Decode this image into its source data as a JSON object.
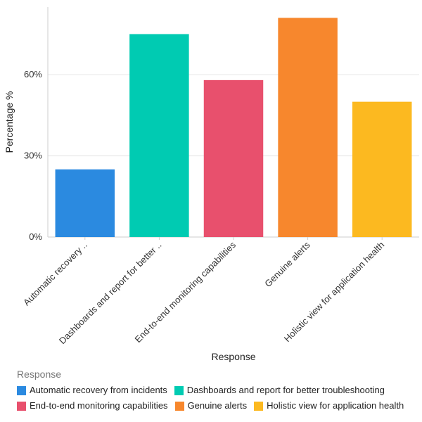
{
  "chart_data": {
    "type": "bar",
    "categories": [
      "Automatic recovery from incidents",
      "Dashboards and report for better troubleshooting",
      "End-to-end monitoring capabilities",
      "Genuine alerts",
      "Holistic view for application health"
    ],
    "category_tick_labels": [
      "Automatic recovery ..",
      "Dashboards and report for better ..",
      "End-to-end monitoring capabilities",
      "Genuine alerts",
      "Holistic view for application health"
    ],
    "values": [
      25,
      75,
      58,
      81,
      50
    ],
    "colors": [
      "#2b8ae0",
      "#00cbb2",
      "#e8506d",
      "#f7872d",
      "#fcb920"
    ],
    "ylim": [
      0,
      85
    ],
    "yticks": [
      0,
      30,
      60
    ],
    "ytick_labels": [
      "0%",
      "30%",
      "60%"
    ],
    "xlabel": "Response",
    "ylabel": "Percentage %",
    "grid": true,
    "legend_title": "Response",
    "legend_position": "bottom"
  }
}
